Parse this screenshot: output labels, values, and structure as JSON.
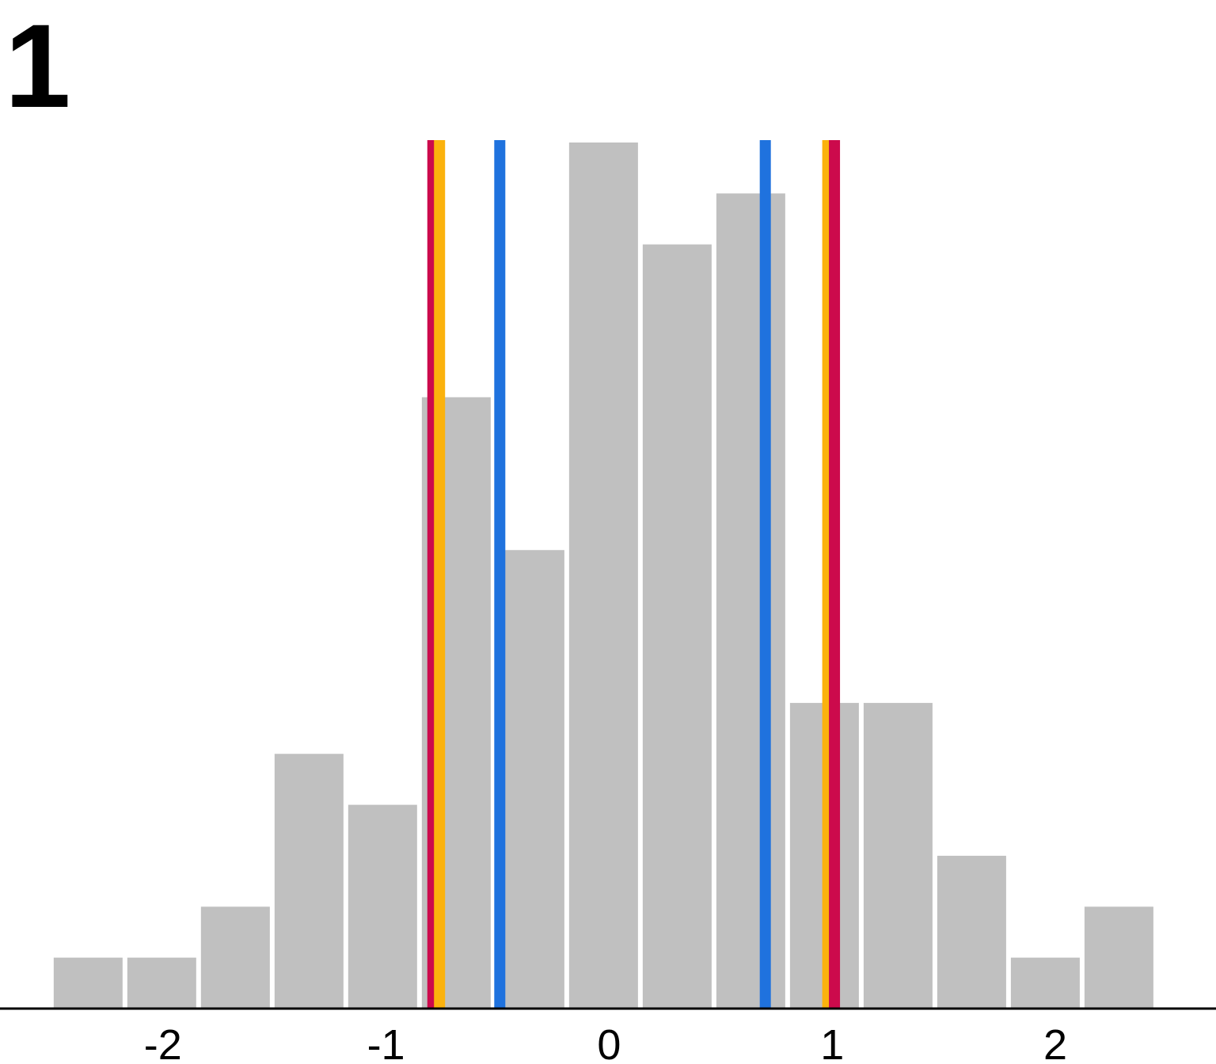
{
  "panel_label": "1",
  "chart_data": {
    "type": "bar",
    "title": "",
    "xlabel": "",
    "ylabel": "",
    "bins": [
      {
        "x0": -2.5,
        "x1": -2.17,
        "count": 1
      },
      {
        "x0": -2.17,
        "x1": -1.84,
        "count": 1
      },
      {
        "x0": -1.84,
        "x1": -1.51,
        "count": 2
      },
      {
        "x0": -1.51,
        "x1": -1.18,
        "count": 5
      },
      {
        "x0": -1.18,
        "x1": -0.85,
        "count": 4
      },
      {
        "x0": -0.85,
        "x1": -0.52,
        "count": 12
      },
      {
        "x0": -0.52,
        "x1": -0.19,
        "count": 9
      },
      {
        "x0": -0.19,
        "x1": 0.14,
        "count": 17
      },
      {
        "x0": 0.14,
        "x1": 0.47,
        "count": 15
      },
      {
        "x0": 0.47,
        "x1": 0.8,
        "count": 16
      },
      {
        "x0": 0.8,
        "x1": 1.13,
        "count": 6
      },
      {
        "x0": 1.13,
        "x1": 1.46,
        "count": 6
      },
      {
        "x0": 1.46,
        "x1": 1.79,
        "count": 3
      },
      {
        "x0": 1.79,
        "x1": 2.12,
        "count": 1
      },
      {
        "x0": 2.12,
        "x1": 2.45,
        "count": 2
      }
    ],
    "xlim": [
      -2.73,
      2.72
    ],
    "ylim": [
      0,
      17
    ],
    "xticks": [
      -2,
      -1,
      0,
      1,
      2
    ],
    "xtick_labels": [
      "-2",
      "-1",
      "0",
      "1",
      "2"
    ],
    "y_axis_shown": false,
    "grid": false,
    "bar_color": "#c0c0c0",
    "vertical_lines": [
      {
        "x": -0.79,
        "color": "#cc0a4c"
      },
      {
        "x": -0.76,
        "color": "#fbb20d"
      },
      {
        "x": -0.49,
        "color": "#1f72de"
      },
      {
        "x": 0.7,
        "color": "#1f72de"
      },
      {
        "x": 0.98,
        "color": "#fbb20d"
      },
      {
        "x": 1.01,
        "color": "#cc0a4c"
      }
    ]
  }
}
